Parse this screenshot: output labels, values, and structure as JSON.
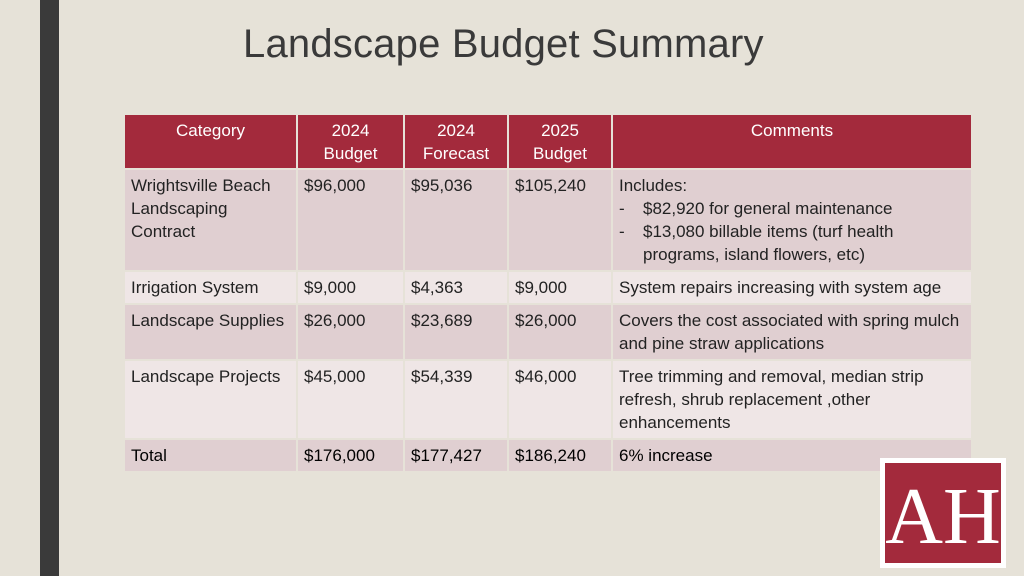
{
  "slide": {
    "title": "Landscape Budget Summary"
  },
  "table": {
    "headers": {
      "category": "Category",
      "budget2024_line1": "2024",
      "budget2024_line2": "Budget",
      "forecast2024_line1": "2024",
      "forecast2024_line2": "Forecast",
      "budget2025_line1": "2025",
      "budget2025_line2": "Budget",
      "comments": "Comments"
    },
    "rows": [
      {
        "category": "Wrightsville Beach Landscaping Contract",
        "budget2024": "$96,000",
        "forecast2024": "$95,036",
        "budget2025": "$105,240",
        "comment_intro": "Includes:",
        "comment_items": [
          "$82,920 for general maintenance",
          "$13,080 billable items (turf health programs, island flowers, etc)"
        ]
      },
      {
        "category": "Irrigation System",
        "budget2024": "$9,000",
        "forecast2024": "$4,363",
        "budget2025": "$9,000",
        "comment": "System repairs increasing with system age"
      },
      {
        "category": "Landscape Supplies",
        "budget2024": "$26,000",
        "forecast2024": "$23,689",
        "budget2025": "$26,000",
        "comment": "Covers the cost associated with spring mulch and pine straw applications"
      },
      {
        "category": "Landscape Projects",
        "budget2024": "$45,000",
        "forecast2024": "$54,339",
        "budget2025": "$46,000",
        "comment": "Tree trimming and removal, median strip refresh, shrub replacement ,other enhancements"
      }
    ],
    "total": {
      "category": "Total",
      "budget2024": "$176,000",
      "forecast2024": "$177,427",
      "budget2025": "$186,240",
      "comment": "6% increase"
    },
    "comment_dash": "-"
  },
  "logo": {
    "letters": "AH",
    "colors": {
      "background": "#a32a3c",
      "letters": "#ffffff",
      "frame": "#ffffff"
    }
  },
  "colors": {
    "header": "#a32a3c",
    "row_dark": "#e0cfd1",
    "row_light": "#efe6e6",
    "slide_background": "#e6e2d8",
    "accent_bar": "#3a3a3a"
  }
}
